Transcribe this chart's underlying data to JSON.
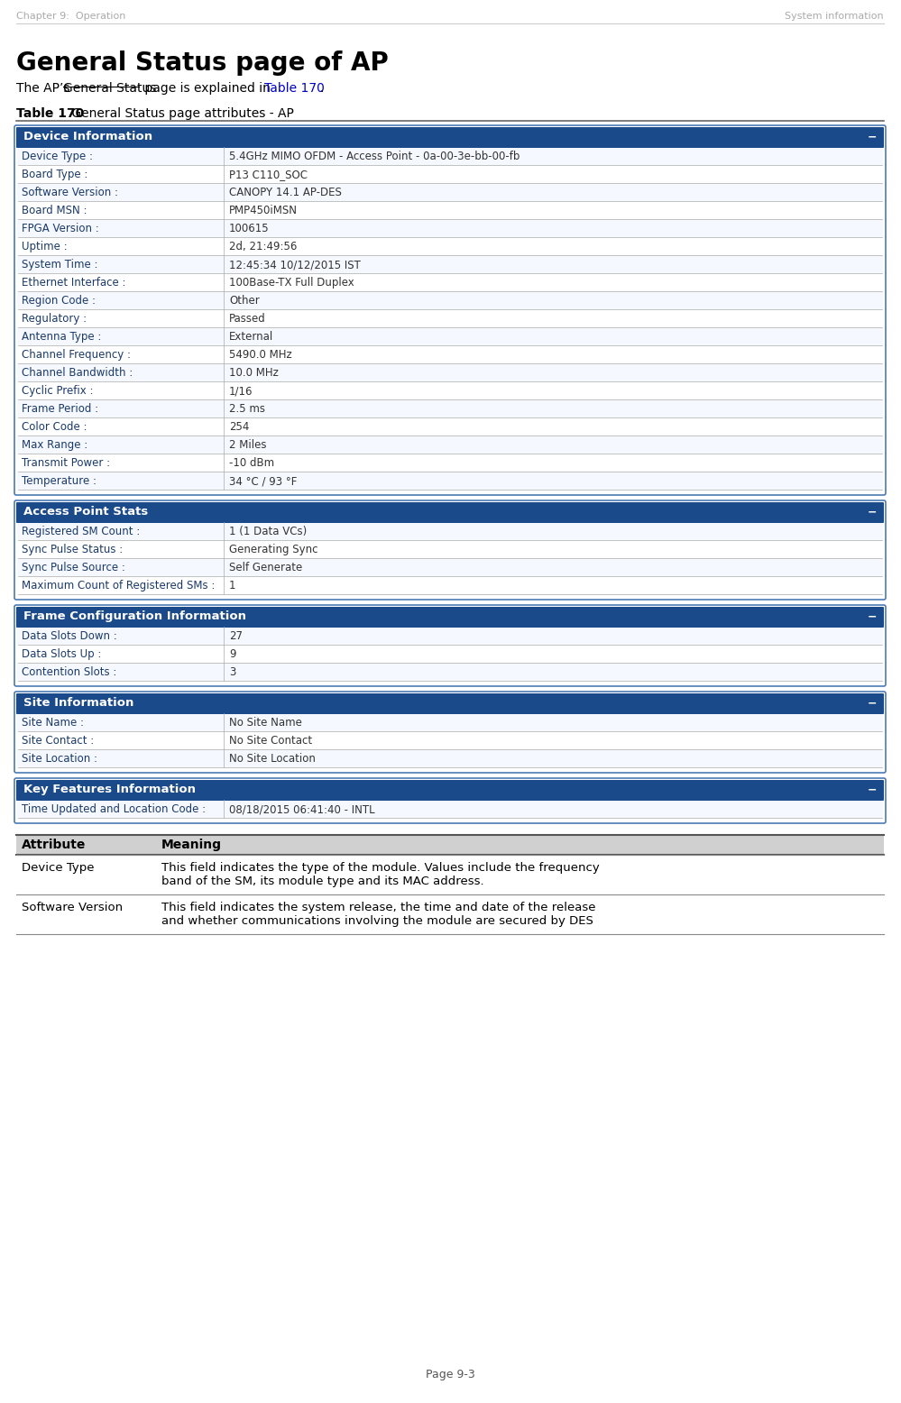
{
  "page_header_left": "Chapter 9:  Operation",
  "page_header_right": "System information",
  "page_footer": "Page 9-3",
  "main_title": "General Status page of AP",
  "table_caption": "Table 170",
  "table_caption_rest": " General Status page attributes - AP",
  "header_bg": "#1a4a8a",
  "header_text_color": "#ffffff",
  "border_color": "#aaaaaa",
  "label_color": "#1a3a6a",
  "value_color": "#333333",
  "link_color": "#0000cc",
  "sections": [
    {
      "title": "Device Information",
      "rows": [
        [
          "Device Type :",
          "5.4GHz MIMO OFDM - Access Point - 0a-00-3e-bb-00-fb"
        ],
        [
          "Board Type :",
          "P13 C110_SOC"
        ],
        [
          "Software Version :",
          "CANOPY 14.1 AP-DES"
        ],
        [
          "Board MSN :",
          "PMP450iMSN"
        ],
        [
          "FPGA Version :",
          "100615"
        ],
        [
          "Uptime :",
          "2d, 21:49:56"
        ],
        [
          "System Time :",
          "12:45:34 10/12/2015 IST"
        ],
        [
          "Ethernet Interface :",
          "100Base-TX Full Duplex"
        ],
        [
          "Region Code :",
          "Other"
        ],
        [
          "Regulatory :",
          "Passed"
        ],
        [
          "Antenna Type :",
          "External"
        ],
        [
          "Channel Frequency :",
          "5490.0 MHz"
        ],
        [
          "Channel Bandwidth :",
          "10.0 MHz"
        ],
        [
          "Cyclic Prefix :",
          "1/16"
        ],
        [
          "Frame Period :",
          "2.5 ms"
        ],
        [
          "Color Code :",
          "254"
        ],
        [
          "Max Range :",
          "2 Miles"
        ],
        [
          "Transmit Power :",
          "-10 dBm"
        ],
        [
          "Temperature :",
          "34 °C / 93 °F"
        ]
      ]
    },
    {
      "title": "Access Point Stats",
      "rows": [
        [
          "Registered SM Count :",
          "1 (1 Data VCs)"
        ],
        [
          "Sync Pulse Status :",
          "Generating Sync"
        ],
        [
          "Sync Pulse Source :",
          "Self Generate"
        ],
        [
          "Maximum Count of Registered SMs :",
          "1"
        ]
      ]
    },
    {
      "title": "Frame Configuration Information",
      "rows": [
        [
          "Data Slots Down :",
          "27"
        ],
        [
          "Data Slots Up :",
          "9"
        ],
        [
          "Contention Slots :",
          "3"
        ]
      ]
    },
    {
      "title": "Site Information",
      "rows": [
        [
          "Site Name :",
          "No Site Name"
        ],
        [
          "Site Contact :",
          "No Site Contact"
        ],
        [
          "Site Location :",
          "No Site Location"
        ]
      ]
    },
    {
      "title": "Key Features Information",
      "rows": [
        [
          "Time Updated and Location Code :",
          "08/18/2015 06:41:40 - INTL"
        ]
      ]
    }
  ],
  "attr_table": {
    "header": [
      "Attribute",
      "Meaning"
    ],
    "rows": [
      [
        "Device Type",
        "This field indicates the type of the module. Values include the frequency\nband of the SM, its module type and its MAC address."
      ],
      [
        "Software Version",
        "This field indicates the system release, the time and date of the release\nand whether communications involving the module are secured by DES"
      ]
    ]
  }
}
